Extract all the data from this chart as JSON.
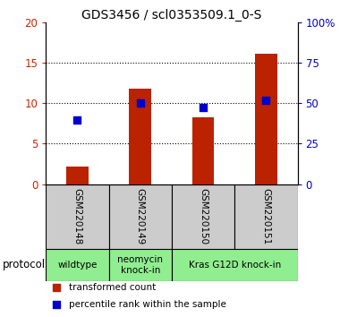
{
  "title": "GDS3456 / scl0353509.1_0-S",
  "samples": [
    "GSM220148",
    "GSM220149",
    "GSM220150",
    "GSM220151"
  ],
  "bar_values": [
    2.2,
    11.8,
    8.3,
    16.1
  ],
  "dot_values_pct": [
    39.5,
    50.0,
    47.5,
    52.0
  ],
  "bar_color": "#bb2200",
  "dot_color": "#0000cc",
  "left_ylim": [
    0,
    20
  ],
  "left_yticks": [
    0,
    5,
    10,
    15,
    20
  ],
  "right_ylim": [
    0,
    100
  ],
  "right_yticks": [
    0,
    25,
    50,
    75,
    100
  ],
  "right_yticklabels": [
    "0",
    "25",
    "50",
    "75",
    "100%"
  ],
  "left_ytick_color": "#cc2200",
  "right_ytick_color": "#0000cc",
  "groups": [
    {
      "label": "wildtype",
      "span": [
        0,
        1
      ],
      "color": "#90ee90"
    },
    {
      "label": "neomycin\nknock-in",
      "span": [
        1,
        2
      ],
      "color": "#90ee90"
    },
    {
      "label": "Kras G12D knock-in",
      "span": [
        2,
        4
      ],
      "color": "#90ee90"
    }
  ],
  "legend_bar_label": "transformed count",
  "legend_dot_label": "percentile rank within the sample",
  "bar_width": 0.35,
  "dot_size": 35,
  "bg_color_plot": "#ffffff",
  "bg_color_xlabel": "#cccccc",
  "title_fontsize": 10,
  "tick_fontsize": 8.5,
  "legend_fontsize": 7.5,
  "xlabel_fontsize": 7.5,
  "group_fontsize": 7.5,
  "protocol_fontsize": 8.5
}
